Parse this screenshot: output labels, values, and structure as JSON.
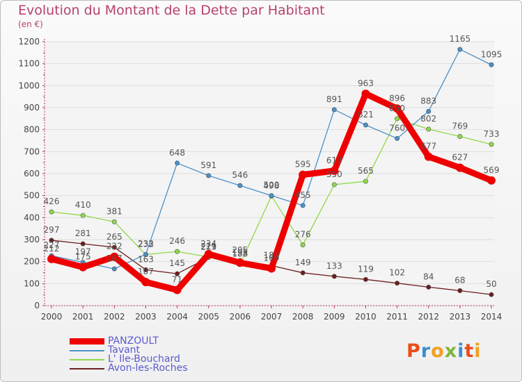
{
  "title": "Evolution du Montant de la Dette par Habitant",
  "subtitle": "(en €)",
  "logo": {
    "text": "Proxiti",
    "colors": [
      "#e94e1b",
      "#3a8fd0",
      "#f2a01f",
      "#7cb83a",
      "#3a8fd0",
      "#e94e1b",
      "#f2a01f"
    ]
  },
  "chart_data": {
    "type": "line",
    "x": [
      "2000",
      "2001",
      "2002",
      "2003",
      "2004",
      "2005",
      "2006",
      "2007",
      "2008",
      "2009",
      "2010",
      "2011",
      "2012",
      "2013",
      "2014"
    ],
    "ylim": [
      0,
      1200
    ],
    "yticks": [
      0,
      100,
      200,
      300,
      400,
      500,
      600,
      700,
      800,
      900,
      1000,
      1100,
      1200
    ],
    "legend_position": "bottom-left",
    "series": [
      {
        "name": "PANZOULT",
        "color": "#ee0000",
        "values": [
          212,
          175,
          222,
          107,
          71,
          234,
          195,
          169,
          595,
          613,
          963,
          896,
          677,
          627,
          569
        ]
      },
      {
        "name": "Tavant",
        "color": "#4a90c8",
        "values": [
          227,
          197,
          167,
          233,
          648,
          591,
          546,
          500,
          455,
          891,
          821,
          760,
          883,
          1165,
          1095
        ]
      },
      {
        "name": "L' Ile-Bouchard",
        "color": "#8ed94a",
        "values": [
          426,
          410,
          381,
          232,
          246,
          221,
          188,
          498,
          276,
          550,
          565,
          850,
          802,
          769,
          733
        ]
      },
      {
        "name": "Avon-les-Roches",
        "color": "#6b1e1e",
        "values": [
          297,
          281,
          265,
          163,
          145,
          219,
          205,
          182,
          149,
          133,
          119,
          102,
          84,
          68,
          50
        ]
      }
    ]
  }
}
